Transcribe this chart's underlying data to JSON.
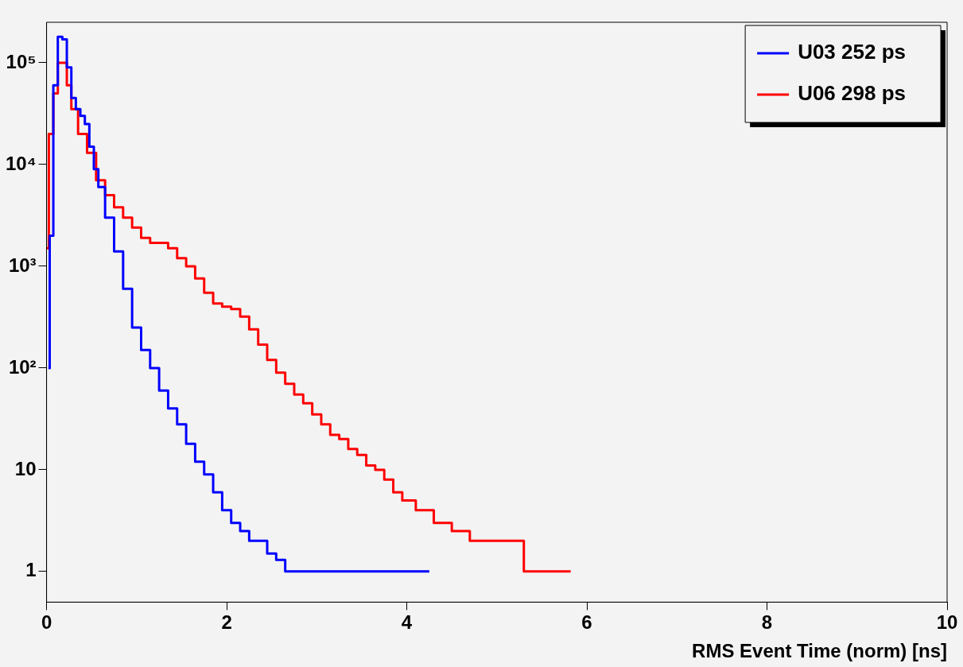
{
  "chart_data": {
    "type": "step",
    "xlabel": "RMS Event Time (norm) [ns]",
    "xlim": [
      0,
      10
    ],
    "xticks": [
      0,
      2,
      4,
      6,
      8,
      10
    ],
    "ylim": [
      0.5,
      250000
    ],
    "log": "y",
    "yticks": [
      1,
      10,
      {
        "value": 100,
        "label": "10²"
      },
      {
        "value": 1000,
        "label": "10³"
      },
      {
        "value": 10000,
        "label": "10⁴"
      },
      {
        "value": 100000,
        "label": "10⁵"
      }
    ],
    "grid": false,
    "legend": "top right",
    "marker": "none",
    "line_style": "solid",
    "series": [
      {
        "name": "U03 252 ps",
        "color": "#0000ff",
        "x": [
          0.02,
          0.05,
          0.1,
          0.15,
          0.2,
          0.25,
          0.3,
          0.35,
          0.4,
          0.45,
          0.5,
          0.55,
          0.6,
          0.7,
          0.8,
          0.9,
          1.0,
          1.1,
          1.2,
          1.3,
          1.4,
          1.5,
          1.6,
          1.7,
          1.8,
          1.9,
          2.0,
          2.1,
          2.2,
          2.3,
          2.4,
          2.5,
          2.6,
          2.7,
          2.8,
          2.9,
          3.1,
          3.3,
          3.5,
          3.8,
          4.25
        ],
        "values": [
          100,
          2000,
          60000,
          180000,
          170000,
          90000,
          45000,
          35000,
          30000,
          25000,
          15000,
          9000,
          6000,
          3000,
          1400,
          600,
          250,
          150,
          100,
          60,
          40,
          28,
          18,
          12,
          9,
          6,
          4,
          3,
          2.5,
          2,
          2,
          1.5,
          1.3,
          1,
          1,
          1,
          1,
          1,
          1,
          1,
          1
        ]
      },
      {
        "name": "U06 298 ps",
        "color": "#ff0000",
        "x": [
          0.0,
          0.05,
          0.1,
          0.15,
          0.2,
          0.25,
          0.3,
          0.4,
          0.5,
          0.6,
          0.7,
          0.8,
          0.9,
          1.0,
          1.1,
          1.2,
          1.3,
          1.4,
          1.5,
          1.6,
          1.7,
          1.8,
          1.9,
          2.0,
          2.1,
          2.2,
          2.3,
          2.4,
          2.5,
          2.6,
          2.7,
          2.8,
          2.9,
          3.0,
          3.1,
          3.2,
          3.3,
          3.4,
          3.5,
          3.6,
          3.7,
          3.8,
          3.9,
          4.0,
          4.2,
          4.4,
          4.6,
          4.8,
          5.0,
          5.2,
          5.4,
          5.65,
          5.82
        ],
        "values": [
          1500,
          20000,
          50000,
          100000,
          100000,
          60000,
          35000,
          20000,
          13000,
          7000,
          5000,
          3800,
          3000,
          2400,
          1900,
          1700,
          1700,
          1500,
          1200,
          1000,
          760,
          550,
          430,
          400,
          380,
          320,
          240,
          170,
          120,
          90,
          70,
          55,
          45,
          35,
          28,
          22,
          20,
          16,
          14,
          11,
          10,
          8,
          6,
          5,
          4,
          3,
          2.5,
          2,
          2,
          2,
          1,
          1,
          1
        ]
      }
    ]
  }
}
